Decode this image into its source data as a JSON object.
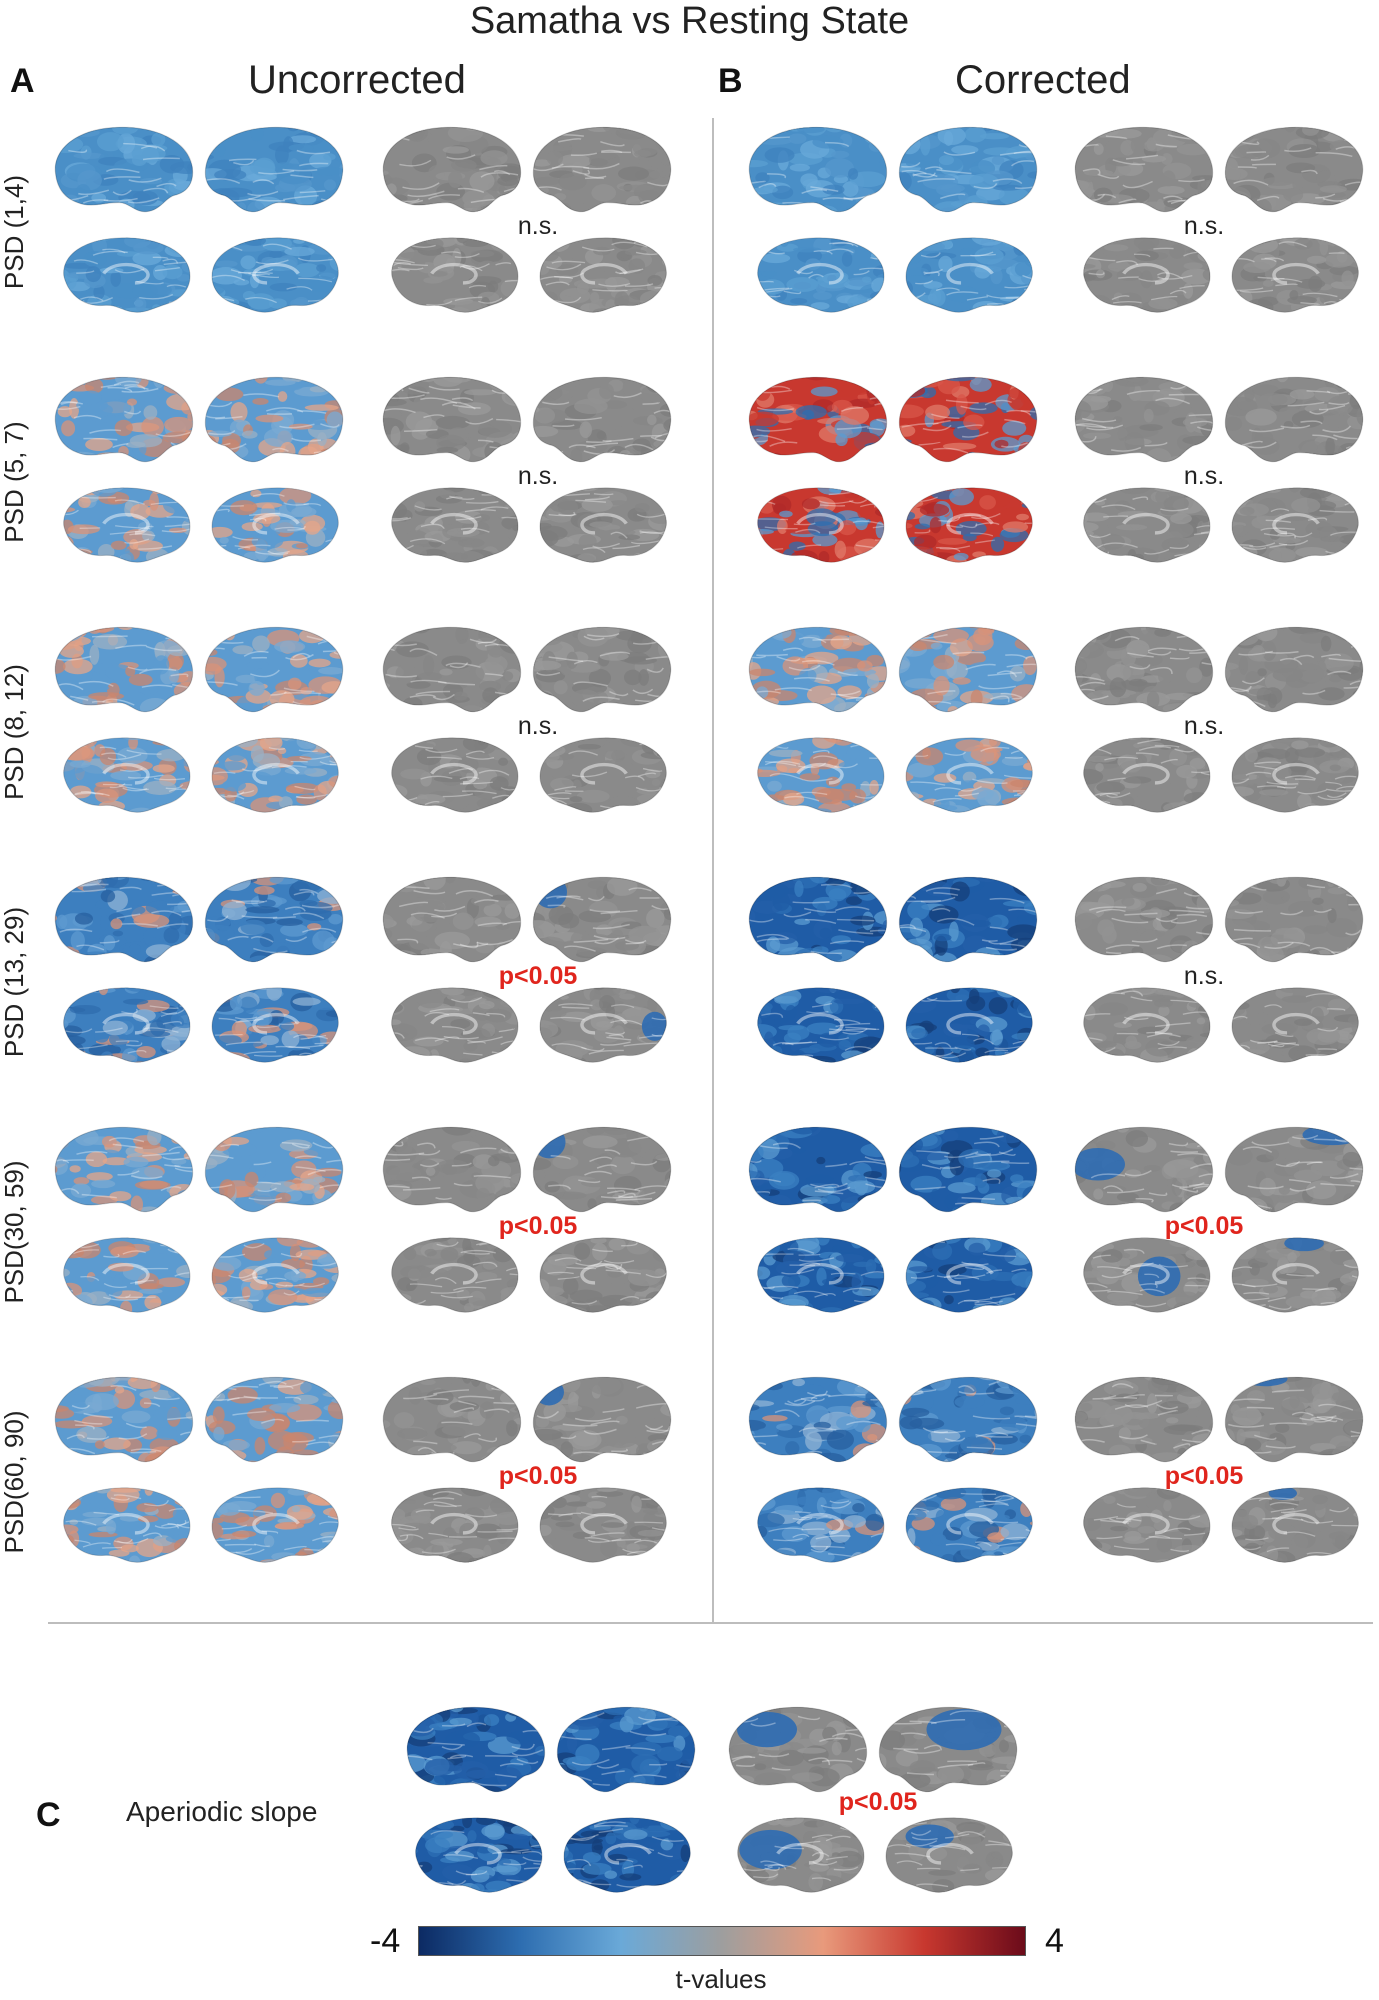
{
  "figure_title": "Samatha vs Resting State",
  "panels": {
    "A": {
      "letter": "A",
      "heading": "Uncorrected"
    },
    "B": {
      "letter": "B",
      "heading": "Corrected"
    },
    "C": {
      "letter": "C",
      "label": "Aperiodic slope",
      "significance": "p<0.05"
    }
  },
  "rows": [
    {
      "label": "PSD (1,4)",
      "sig_uncorrected": "n.s.",
      "sig_corrected": "n.s."
    },
    {
      "label": "PSD (5, 7)",
      "sig_uncorrected": "n.s.",
      "sig_corrected": "n.s."
    },
    {
      "label": "PSD (8, 12)",
      "sig_uncorrected": "n.s.",
      "sig_corrected": "n.s."
    },
    {
      "label": "PSD (13, 29)",
      "sig_uncorrected": "p<0.05",
      "sig_corrected": "n.s."
    },
    {
      "label": "PSD(30, 59)",
      "sig_uncorrected": "p<0.05",
      "sig_corrected": "p<0.05"
    },
    {
      "label": "PSD(60, 90)",
      "sig_uncorrected": "p<0.05",
      "sig_corrected": "p<0.05"
    }
  ],
  "colorbar": {
    "min_label": "-4",
    "max_label": "4",
    "title": "t-values",
    "colors": [
      "#0c2a63",
      "#2d6db0",
      "#6aa9d8",
      "#9e9e9e",
      "#e89a7c",
      "#c8382f",
      "#6b0b1a"
    ]
  },
  "colors": {
    "significant_text": "#e0251d",
    "insignificant_surface": "#8a8a8a"
  }
}
